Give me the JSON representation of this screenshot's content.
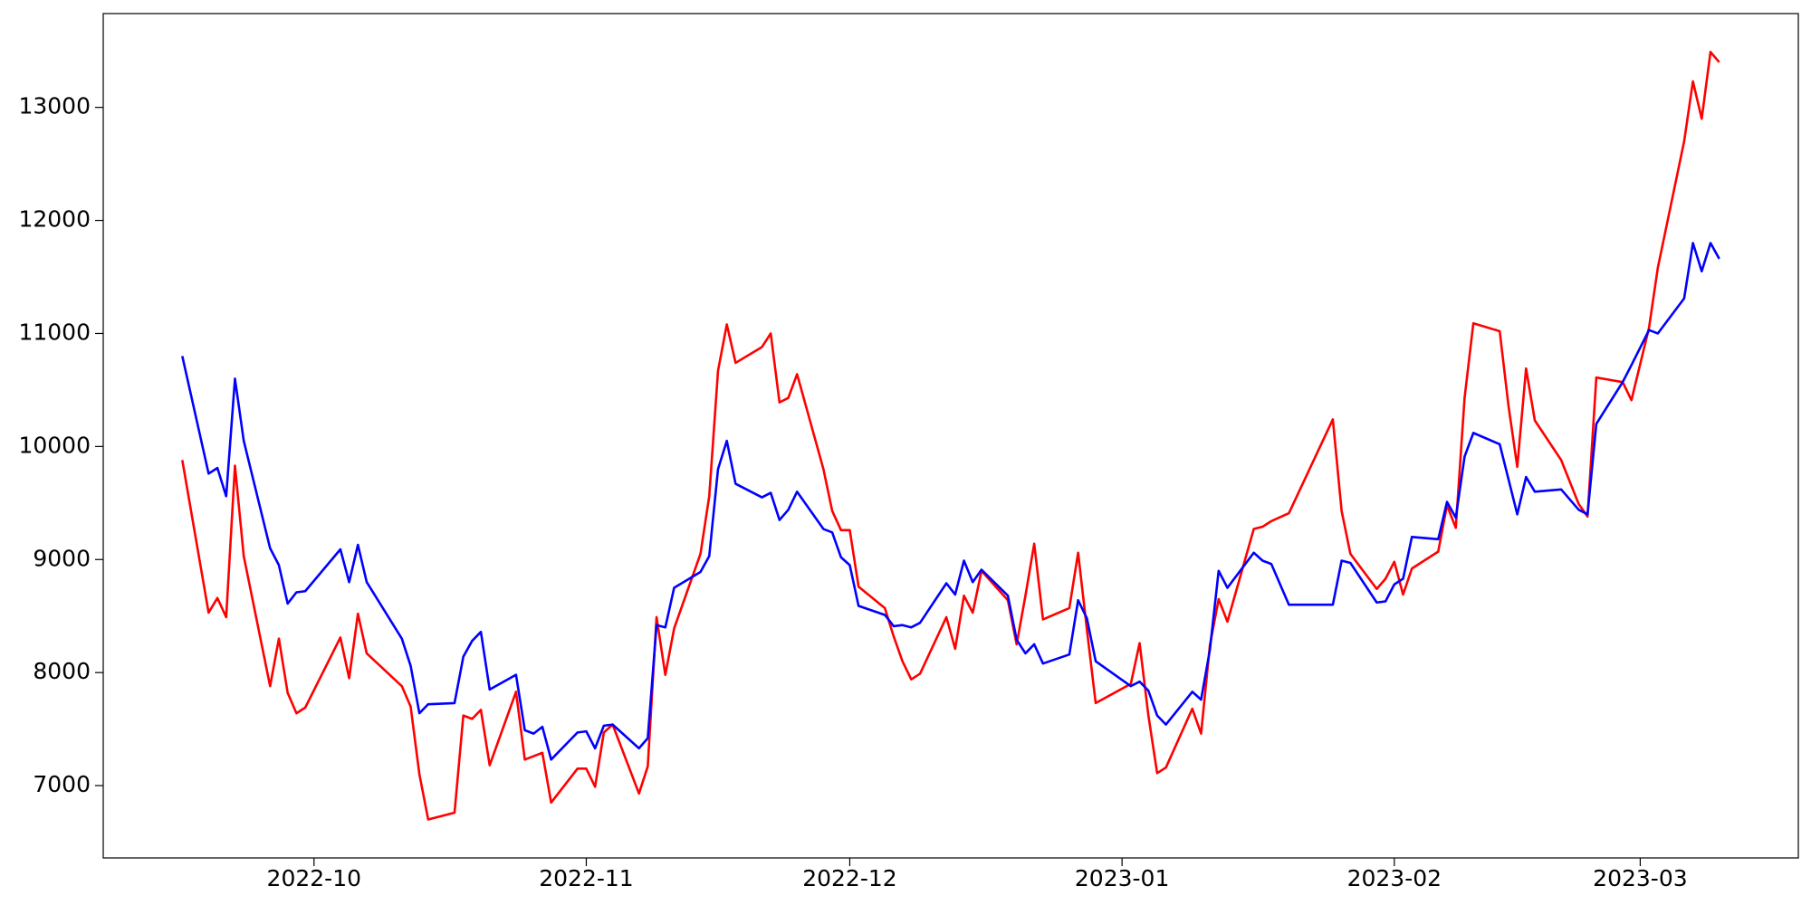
{
  "chart_data": {
    "type": "line",
    "x": [
      "2022-09-16",
      "2022-09-19",
      "2022-09-20",
      "2022-09-21",
      "2022-09-22",
      "2022-09-23",
      "2022-09-26",
      "2022-09-27",
      "2022-09-28",
      "2022-09-29",
      "2022-09-30",
      "2022-10-04",
      "2022-10-05",
      "2022-10-06",
      "2022-10-07",
      "2022-10-11",
      "2022-10-12",
      "2022-10-13",
      "2022-10-14",
      "2022-10-17",
      "2022-10-18",
      "2022-10-19",
      "2022-10-20",
      "2022-10-21",
      "2022-10-24",
      "2022-10-25",
      "2022-10-26",
      "2022-10-27",
      "2022-10-28",
      "2022-10-31",
      "2022-11-01",
      "2022-11-02",
      "2022-11-03",
      "2022-11-04",
      "2022-11-07",
      "2022-11-08",
      "2022-11-09",
      "2022-11-10",
      "2022-11-11",
      "2022-11-14",
      "2022-11-15",
      "2022-11-16",
      "2022-11-17",
      "2022-11-18",
      "2022-11-21",
      "2022-11-22",
      "2022-11-23",
      "2022-11-24",
      "2022-11-25",
      "2022-11-28",
      "2022-11-29",
      "2022-11-30",
      "2022-12-01",
      "2022-12-02",
      "2022-12-05",
      "2022-12-06",
      "2022-12-07",
      "2022-12-08",
      "2022-12-09",
      "2022-12-12",
      "2022-12-13",
      "2022-12-14",
      "2022-12-15",
      "2022-12-16",
      "2022-12-19",
      "2022-12-20",
      "2022-12-21",
      "2022-12-22",
      "2022-12-23",
      "2022-12-26",
      "2022-12-27",
      "2022-12-28",
      "2022-12-29",
      "2023-01-02",
      "2023-01-03",
      "2023-01-04",
      "2023-01-05",
      "2023-01-06",
      "2023-01-09",
      "2023-01-10",
      "2023-01-11",
      "2023-01-12",
      "2023-01-13",
      "2023-01-16",
      "2023-01-17",
      "2023-01-18",
      "2023-01-20",
      "2023-01-25",
      "2023-01-26",
      "2023-01-27",
      "2023-01-30",
      "2023-01-31",
      "2023-02-01",
      "2023-02-02",
      "2023-02-03",
      "2023-02-06",
      "2023-02-07",
      "2023-02-08",
      "2023-02-09",
      "2023-02-10",
      "2023-02-13",
      "2023-02-14",
      "2023-02-15",
      "2023-02-16",
      "2023-02-17",
      "2023-02-20",
      "2023-02-22",
      "2023-02-23",
      "2023-02-24",
      "2023-02-27",
      "2023-02-28",
      "2023-03-02",
      "2023-03-03",
      "2023-03-06",
      "2023-03-07",
      "2023-03-08",
      "2023-03-09",
      "2023-03-10"
    ],
    "series": [
      {
        "color": "#ff0000",
        "values": [
          9880,
          8530,
          8660,
          8490,
          9830,
          9030,
          7880,
          8300,
          7820,
          7640,
          7690,
          8310,
          7950,
          8520,
          8170,
          7880,
          7700,
          7100,
          6700,
          6760,
          7620,
          7590,
          7670,
          7180,
          7830,
          7230,
          7260,
          7290,
          6850,
          7150,
          7150,
          6990,
          7470,
          7540,
          6930,
          7170,
          8490,
          7980,
          8390,
          9050,
          9560,
          10670,
          11080,
          10740,
          10880,
          11000,
          10390,
          10430,
          10640,
          9800,
          9430,
          9260,
          9260,
          8760,
          8570,
          8320,
          8100,
          7940,
          7990,
          8490,
          8210,
          8680,
          8530,
          8900,
          8640,
          8250,
          8680,
          9140,
          8470,
          8570,
          9060,
          8380,
          7730,
          7900,
          8260,
          7620,
          7110,
          7160,
          7680,
          7460,
          8240,
          8650,
          8450,
          9270,
          9290,
          9340,
          9410,
          10240,
          9430,
          9050,
          8740,
          8830,
          8980,
          8690,
          8920,
          9070,
          9480,
          9280,
          10430,
          11090,
          11020,
          10360,
          9820,
          10690,
          10230,
          9880,
          9490,
          9380,
          10610,
          10570,
          10410,
          11050,
          11580,
          12700,
          13230,
          12900,
          13490,
          13400
        ]
      },
      {
        "color": "#0000ff",
        "values": [
          10800,
          9760,
          9810,
          9560,
          10600,
          10050,
          9100,
          8950,
          8610,
          8710,
          8720,
          9090,
          8800,
          9130,
          8800,
          8300,
          8060,
          7640,
          7720,
          7730,
          8140,
          8280,
          8360,
          7850,
          7980,
          7490,
          7460,
          7520,
          7230,
          7470,
          7480,
          7330,
          7530,
          7540,
          7330,
          7420,
          8420,
          8400,
          8750,
          8890,
          9030,
          9800,
          10050,
          9670,
          9550,
          9590,
          9350,
          9440,
          9600,
          9270,
          9240,
          9020,
          8950,
          8590,
          8510,
          8410,
          8420,
          8400,
          8440,
          8790,
          8690,
          8990,
          8800,
          8910,
          8680,
          8290,
          8170,
          8250,
          8080,
          8160,
          8640,
          8480,
          8100,
          7880,
          7920,
          7840,
          7620,
          7540,
          7830,
          7760,
          8200,
          8900,
          8750,
          9060,
          8990,
          8960,
          8600,
          8600,
          8990,
          8970,
          8620,
          8630,
          8780,
          8830,
          9200,
          9180,
          9510,
          9370,
          9910,
          10120,
          10020,
          9710,
          9400,
          9730,
          9600,
          9620,
          9440,
          9400,
          10200,
          10570,
          10720,
          11030,
          11000,
          11310,
          11800,
          11550,
          11800,
          11660
        ]
      }
    ],
    "xlim": [
      "2022-09-07",
      "2023-03-19"
    ],
    "xticks": [
      {
        "value": "2022-10-01",
        "label": "2022-10"
      },
      {
        "value": "2022-11-01",
        "label": "2022-11"
      },
      {
        "value": "2022-12-01",
        "label": "2022-12"
      },
      {
        "value": "2023-01-01",
        "label": "2023-01"
      },
      {
        "value": "2023-02-01",
        "label": "2023-02"
      },
      {
        "value": "2023-03-01",
        "label": "2023-03"
      }
    ],
    "ylim": [
      6360,
      13830
    ],
    "yticks": [
      7000,
      8000,
      9000,
      10000,
      11000,
      12000,
      13000
    ]
  }
}
